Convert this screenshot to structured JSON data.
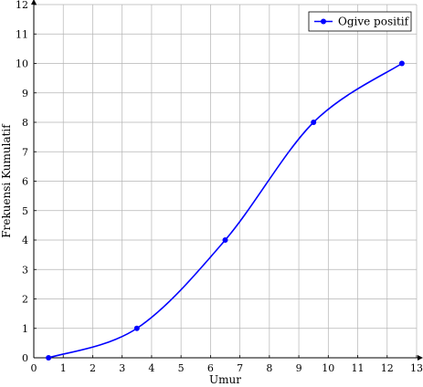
{
  "chart_data": {
    "type": "line",
    "xlabel": "Umur",
    "ylabel": "Frekuensi Kumulatif",
    "xlim": [
      0,
      13
    ],
    "ylim": [
      0,
      12
    ],
    "xticks": [
      0,
      1,
      2,
      3,
      4,
      5,
      6,
      7,
      8,
      9,
      10,
      11,
      12,
      13
    ],
    "yticks": [
      0,
      1,
      2,
      3,
      4,
      5,
      6,
      7,
      8,
      9,
      10,
      11,
      12
    ],
    "grid": true,
    "legend_position": "top-right",
    "series": [
      {
        "name": "Ogive positif",
        "color": "#0000ff",
        "x": [
          0.5,
          3.5,
          6.5,
          9.5,
          12.5
        ],
        "y": [
          0,
          1,
          4,
          8,
          10
        ]
      }
    ]
  }
}
